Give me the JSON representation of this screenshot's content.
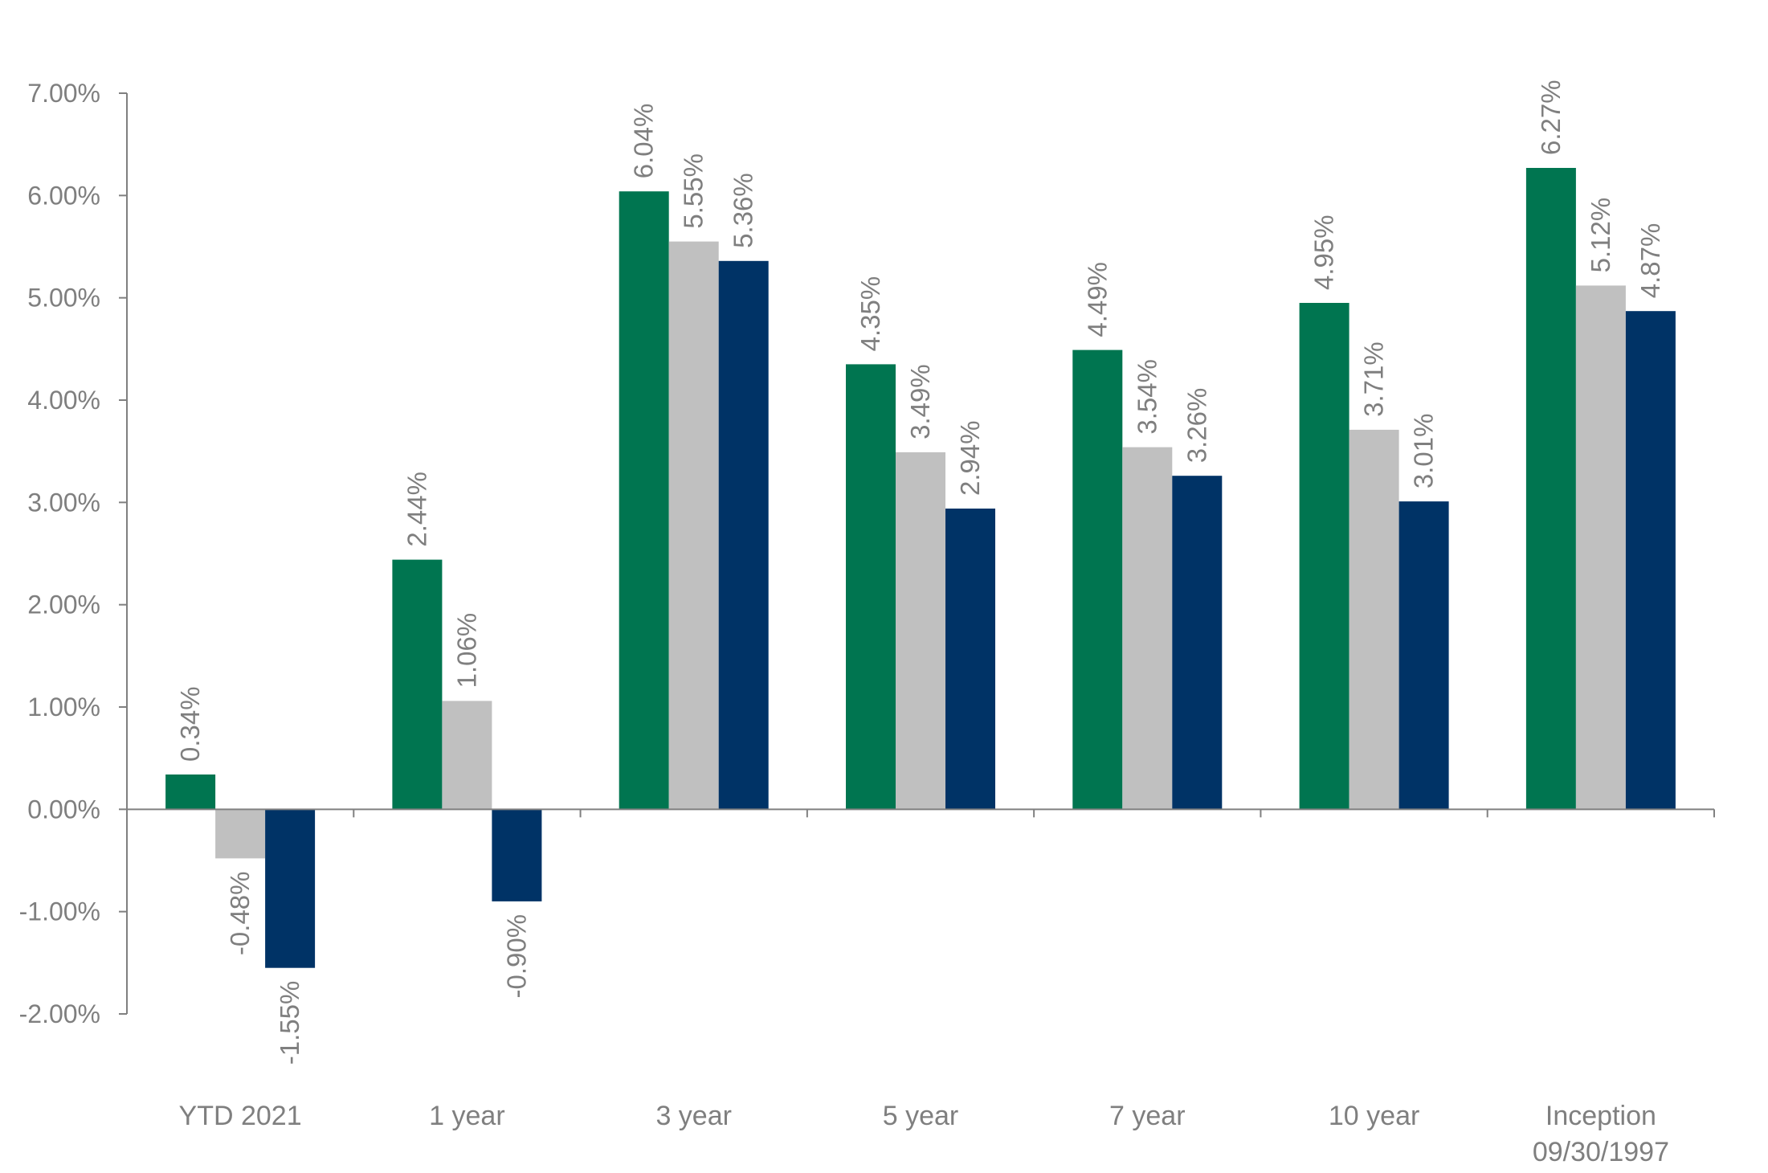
{
  "chart_data": {
    "type": "bar",
    "title": "",
    "xlabel": "",
    "ylabel": "",
    "categories": [
      [
        "YTD 2021"
      ],
      [
        "1 year"
      ],
      [
        "3 year"
      ],
      [
        "5 year"
      ],
      [
        "7 year"
      ],
      [
        "10 year"
      ],
      [
        "Inception",
        "09/30/1997"
      ]
    ],
    "series": [
      {
        "color": "#007550",
        "values": [
          0.34,
          2.44,
          6.04,
          4.35,
          4.49,
          4.95,
          6.27
        ]
      },
      {
        "color": "#c0c0c0",
        "values": [
          -0.48,
          1.06,
          5.55,
          3.49,
          3.54,
          3.71,
          5.12
        ]
      },
      {
        "color": "#003366",
        "values": [
          -1.55,
          -0.9,
          5.36,
          2.94,
          3.26,
          3.01,
          4.87
        ]
      }
    ],
    "data_labels": [
      [
        "0.34%",
        "2.44%",
        "6.04%",
        "4.35%",
        "4.49%",
        "4.95%",
        "6.27%"
      ],
      [
        "-0.48%",
        "1.06%",
        "5.55%",
        "3.49%",
        "3.54%",
        "3.71%",
        "5.12%"
      ],
      [
        "-1.55%",
        "-0.90%",
        "5.36%",
        "2.94%",
        "3.26%",
        "3.01%",
        "4.87%"
      ]
    ],
    "y_ticks": [
      {
        "value": 7,
        "label": "7.00%"
      },
      {
        "value": 6,
        "label": "6.00%"
      },
      {
        "value": 5,
        "label": "5.00%"
      },
      {
        "value": 4,
        "label": "4.00%"
      },
      {
        "value": 3,
        "label": "3.00%"
      },
      {
        "value": 2,
        "label": "2.00%"
      },
      {
        "value": 1,
        "label": "1.00%"
      },
      {
        "value": 0,
        "label": "0.00%"
      },
      {
        "value": -1,
        "label": "-1.00%"
      },
      {
        "value": -2,
        "label": "-2.00%"
      }
    ],
    "ylim": [
      -2,
      7
    ],
    "grid": false,
    "legend": "none",
    "axis_color": "#808080",
    "text_color": "#7f7f7f"
  }
}
